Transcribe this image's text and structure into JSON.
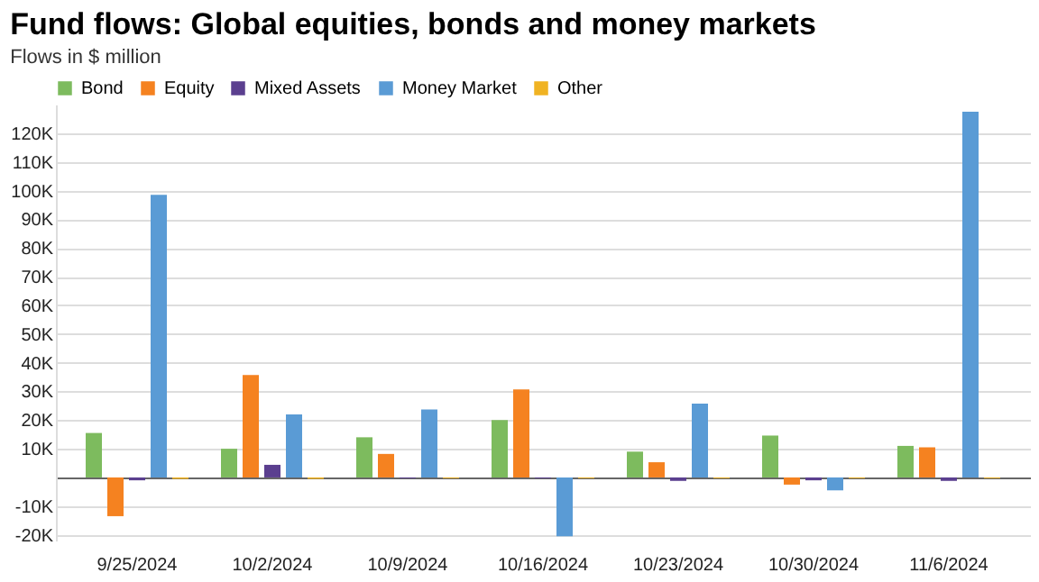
{
  "chart_data": {
    "type": "bar",
    "title": "Fund flows: Global equities, bonds and money markets",
    "subtitle": "Flows in $ million",
    "categories": [
      "9/25/2024",
      "10/2/2024",
      "10/9/2024",
      "10/16/2024",
      "10/23/2024",
      "10/30/2024",
      "11/6/2024"
    ],
    "series": [
      {
        "name": "Bond",
        "color": "#7dbb5e",
        "values": [
          15500,
          10000,
          14000,
          20000,
          9000,
          14600,
          11000
        ]
      },
      {
        "name": "Equity",
        "color": "#f58220",
        "values": [
          -13500,
          35700,
          8200,
          30700,
          5300,
          -2500,
          10500
        ]
      },
      {
        "name": "Mixed Assets",
        "color": "#5b3f8f",
        "values": [
          -1000,
          4400,
          -300,
          -300,
          -1200,
          -1000,
          -1200
        ]
      },
      {
        "name": "Money Market",
        "color": "#5a9bd5",
        "values": [
          98500,
          22000,
          23700,
          -20500,
          25700,
          -4500,
          127500
        ]
      },
      {
        "name": "Other",
        "color": "#f0b323",
        "values": [
          -500,
          -500,
          -300,
          -300,
          -300,
          -300,
          -300
        ]
      }
    ],
    "ylim": [
      -22000,
      130000
    ],
    "yticks": [
      {
        "value": -20000,
        "label": "-20K"
      },
      {
        "value": -10000,
        "label": "-10K"
      },
      {
        "value": 0,
        "label": null
      },
      {
        "value": 10000,
        "label": "10K"
      },
      {
        "value": 20000,
        "label": "20K"
      },
      {
        "value": 30000,
        "label": "30K"
      },
      {
        "value": 40000,
        "label": "40K"
      },
      {
        "value": 50000,
        "label": "50K"
      },
      {
        "value": 60000,
        "label": "60K"
      },
      {
        "value": 70000,
        "label": "70K"
      },
      {
        "value": 80000,
        "label": "80K"
      },
      {
        "value": 90000,
        "label": "90K"
      },
      {
        "value": 100000,
        "label": "100K"
      },
      {
        "value": 110000,
        "label": "110K"
      },
      {
        "value": 120000,
        "label": "120K"
      }
    ],
    "grid": "y",
    "legend": "top left"
  }
}
